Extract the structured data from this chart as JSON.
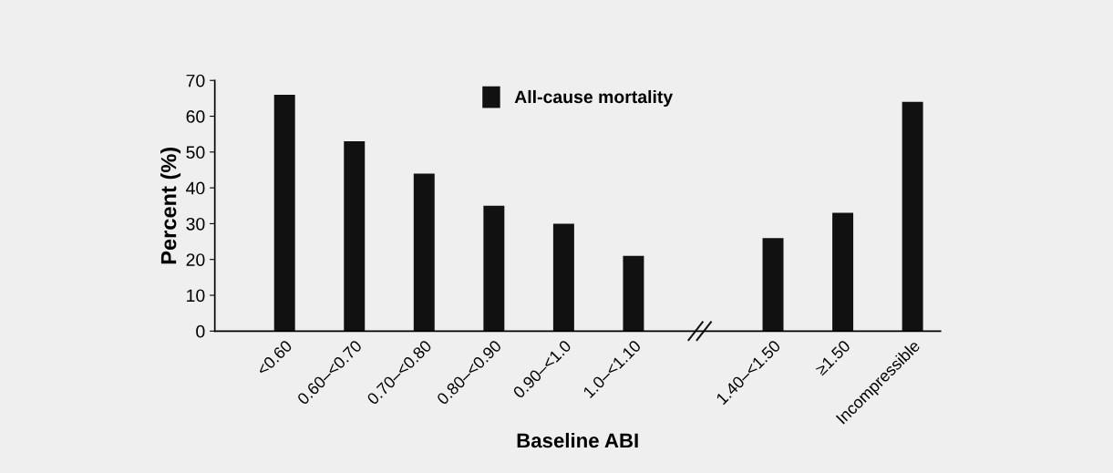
{
  "chart_data": {
    "type": "bar",
    "xlabel": "Baseline ABI",
    "ylabel": "Percent (%)",
    "categories": [
      "<0.60",
      "0.60–<0.70",
      "0.70–<0.80",
      "0.80–<0.90",
      "0.90–<1.0",
      "1.0–<1.10",
      null,
      "1.40–<1.50",
      "≥1.50",
      "Incompressible"
    ],
    "series": [
      {
        "name": "All-cause mortality",
        "color": "#111111",
        "values": [
          66,
          53,
          44,
          35,
          30,
          21,
          null,
          26,
          33,
          64
        ]
      }
    ],
    "ylim": [
      0,
      70
    ],
    "yticks": [
      0,
      10,
      20,
      30,
      40,
      50,
      60,
      70
    ],
    "legend": "top",
    "grid": false
  }
}
